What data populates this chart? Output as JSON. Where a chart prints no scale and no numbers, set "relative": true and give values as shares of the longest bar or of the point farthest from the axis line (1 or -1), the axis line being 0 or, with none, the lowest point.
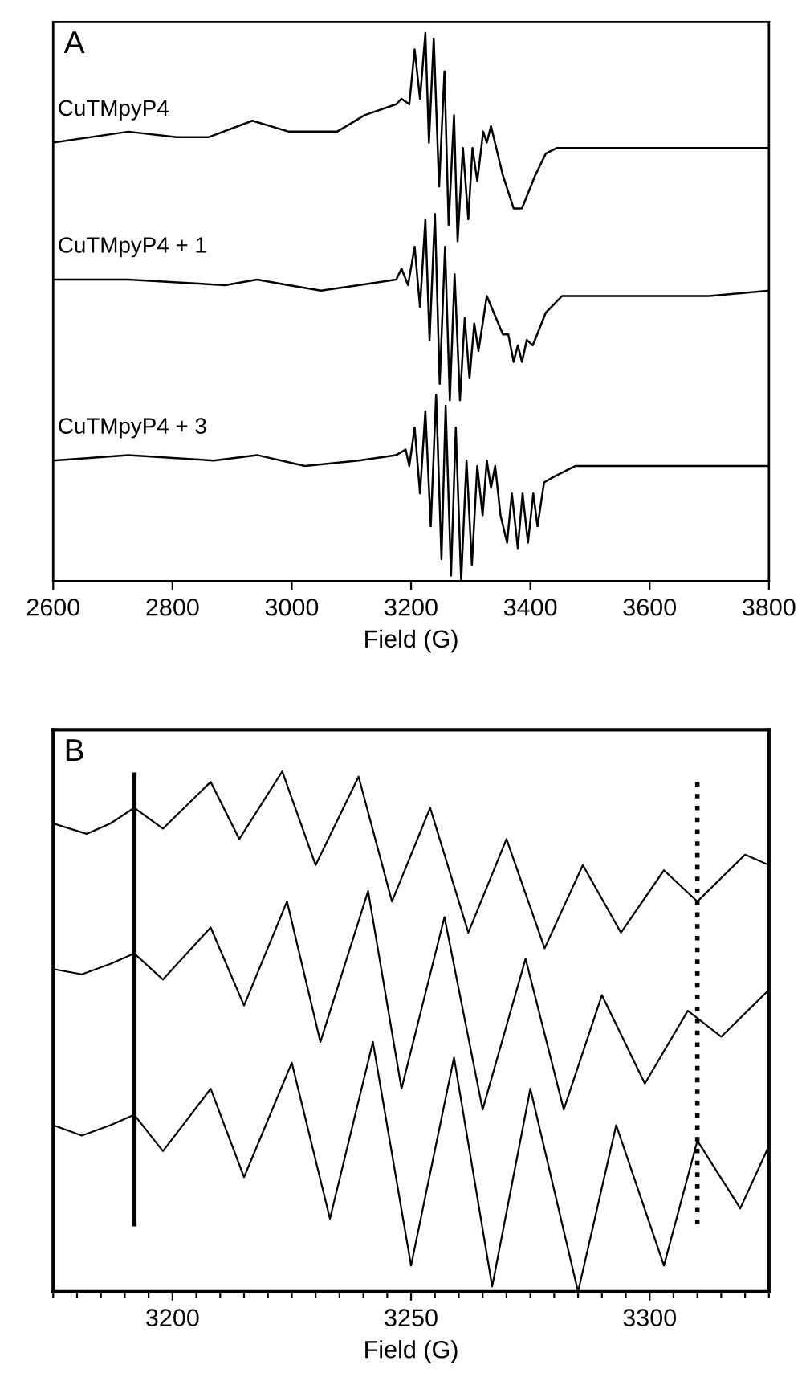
{
  "chart_data": [
    {
      "type": "line",
      "title": "A",
      "xlabel": "Field (G)",
      "relative": true,
      "xlim": [
        2600,
        3800
      ],
      "xticks": [
        2600,
        2800,
        3000,
        3200,
        3400,
        3600,
        3800
      ],
      "grid": false,
      "legend": false,
      "marker": "none",
      "line_style": "solid",
      "series": [
        {
          "name": "CuTMpyP4",
          "color": "#000000",
          "x": [
            2600,
            2726,
            2807,
            2861,
            2934,
            2995,
            3076,
            3122,
            3175,
            3184,
            3197,
            3206,
            3215,
            3224,
            3230,
            3238,
            3247,
            3256,
            3263,
            3272,
            3278,
            3287,
            3296,
            3303,
            3311,
            3321,
            3327,
            3334,
            3354,
            3372,
            3386,
            3408,
            3426,
            3444,
            3500,
            3600,
            3700,
            3800
          ],
          "values": [
            0.8,
            0.82,
            0.81,
            0.81,
            0.84,
            0.82,
            0.82,
            0.85,
            0.87,
            0.88,
            0.87,
            0.97,
            0.88,
            1.0,
            0.8,
            0.99,
            0.72,
            0.93,
            0.65,
            0.85,
            0.62,
            0.79,
            0.66,
            0.79,
            0.73,
            0.82,
            0.8,
            0.83,
            0.74,
            0.68,
            0.68,
            0.74,
            0.78,
            0.79,
            0.79,
            0.79,
            0.79,
            0.79
          ]
        },
        {
          "name": "CuTMpyP4 + 1",
          "color": "#000000",
          "x": [
            2600,
            2726,
            2888,
            2942,
            2995,
            3049,
            3112,
            3175,
            3184,
            3195,
            3206,
            3215,
            3224,
            3231,
            3240,
            3248,
            3257,
            3265,
            3273,
            3282,
            3290,
            3298,
            3306,
            3313,
            3327,
            3354,
            3363,
            3372,
            3379,
            3386,
            3394,
            3404,
            3426,
            3453,
            3516,
            3600,
            3700,
            3800
          ],
          "values": [
            0.55,
            0.55,
            0.54,
            0.55,
            0.54,
            0.53,
            0.54,
            0.55,
            0.57,
            0.54,
            0.61,
            0.5,
            0.66,
            0.44,
            0.67,
            0.36,
            0.61,
            0.33,
            0.56,
            0.33,
            0.48,
            0.37,
            0.47,
            0.42,
            0.52,
            0.45,
            0.45,
            0.4,
            0.43,
            0.4,
            0.44,
            0.43,
            0.49,
            0.52,
            0.52,
            0.52,
            0.52,
            0.53
          ]
        },
        {
          "name": "CuTMpyP4 + 3",
          "color": "#000000",
          "x": [
            2600,
            2726,
            2869,
            2942,
            3022,
            3112,
            3175,
            3191,
            3197,
            3206,
            3215,
            3224,
            3233,
            3242,
            3251,
            3258,
            3267,
            3275,
            3284,
            3293,
            3302,
            3311,
            3320,
            3327,
            3334,
            3341,
            3350,
            3361,
            3369,
            3379,
            3387,
            3396,
            3405,
            3412,
            3423,
            3439,
            3475,
            3534,
            3600,
            3700,
            3800
          ],
          "values": [
            0.22,
            0.23,
            0.22,
            0.23,
            0.21,
            0.22,
            0.23,
            0.24,
            0.21,
            0.28,
            0.16,
            0.31,
            0.1,
            0.34,
            0.04,
            0.32,
            0.01,
            0.28,
            0.0,
            0.22,
            0.03,
            0.21,
            0.12,
            0.22,
            0.17,
            0.21,
            0.12,
            0.07,
            0.16,
            0.06,
            0.16,
            0.07,
            0.16,
            0.1,
            0.18,
            0.19,
            0.21,
            0.21,
            0.21,
            0.21,
            0.21
          ]
        }
      ]
    },
    {
      "type": "line",
      "title": "B",
      "xlabel": "Field (G)",
      "relative": true,
      "xlim": [
        3175,
        3325
      ],
      "xticks": [
        {
          "value": 3175,
          "label": null
        },
        {
          "value": 3180,
          "label": null
        },
        {
          "value": 3185,
          "label": null
        },
        {
          "value": 3190,
          "label": null
        },
        {
          "value": 3195,
          "label": null
        },
        3200,
        {
          "value": 3205,
          "label": null
        },
        {
          "value": 3210,
          "label": null
        },
        {
          "value": 3215,
          "label": null
        },
        {
          "value": 3220,
          "label": null
        },
        {
          "value": 3225,
          "label": null
        },
        {
          "value": 3230,
          "label": null
        },
        {
          "value": 3235,
          "label": null
        },
        {
          "value": 3240,
          "label": null
        },
        {
          "value": 3245,
          "label": null
        },
        3250,
        {
          "value": 3255,
          "label": null
        },
        {
          "value": 3260,
          "label": null
        },
        {
          "value": 3265,
          "label": null
        },
        {
          "value": 3270,
          "label": null
        },
        {
          "value": 3275,
          "label": null
        },
        {
          "value": 3280,
          "label": null
        },
        {
          "value": 3285,
          "label": null
        },
        {
          "value": 3290,
          "label": null
        },
        {
          "value": 3295,
          "label": null
        },
        3300,
        {
          "value": 3305,
          "label": null
        },
        {
          "value": 3310,
          "label": null
        },
        {
          "value": 3315,
          "label": null
        },
        {
          "value": 3320,
          "label": null
        },
        {
          "value": 3325,
          "label": null
        }
      ],
      "grid": false,
      "legend": false,
      "marker": "none",
      "line_style": "solid",
      "ref_lines": [
        {
          "axis": "x",
          "value": 3192,
          "color": "#000000",
          "line_style": "solid"
        },
        {
          "axis": "x",
          "value": 3310,
          "color": "#000000",
          "line_style": "dotted"
        }
      ],
      "series": [
        {
          "color": "#000000",
          "x": [
            3175,
            3182,
            3187,
            3192,
            3198,
            3208,
            3214,
            3223,
            3230,
            3239,
            3246,
            3254,
            3262,
            3270,
            3278,
            3286,
            3294,
            3303,
            3310,
            3320,
            3325
          ],
          "values": [
            0.9,
            0.88,
            0.9,
            0.93,
            0.89,
            0.98,
            0.87,
            1.0,
            0.82,
            0.99,
            0.75,
            0.93,
            0.69,
            0.87,
            0.66,
            0.82,
            0.69,
            0.81,
            0.75,
            0.84,
            0.82
          ]
        },
        {
          "color": "#000000",
          "x": [
            3175,
            3181,
            3187,
            3192,
            3198,
            3208,
            3215,
            3224,
            3231,
            3241,
            3248,
            3257,
            3265,
            3274,
            3282,
            3290,
            3299,
            3308,
            3315,
            3325
          ],
          "values": [
            0.62,
            0.61,
            0.63,
            0.65,
            0.6,
            0.7,
            0.55,
            0.75,
            0.48,
            0.77,
            0.39,
            0.72,
            0.35,
            0.64,
            0.35,
            0.57,
            0.4,
            0.54,
            0.49,
            0.58
          ]
        },
        {
          "color": "#000000",
          "x": [
            3175,
            3181,
            3187,
            3192,
            3198,
            3208,
            3215,
            3225,
            3233,
            3242,
            3250,
            3259,
            3267,
            3275,
            3285,
            3293,
            3303,
            3310,
            3319,
            3325
          ],
          "values": [
            0.32,
            0.3,
            0.32,
            0.34,
            0.27,
            0.39,
            0.22,
            0.44,
            0.14,
            0.48,
            0.05,
            0.45,
            0.01,
            0.39,
            0.0,
            0.32,
            0.05,
            0.29,
            0.16,
            0.28
          ]
        }
      ]
    }
  ]
}
